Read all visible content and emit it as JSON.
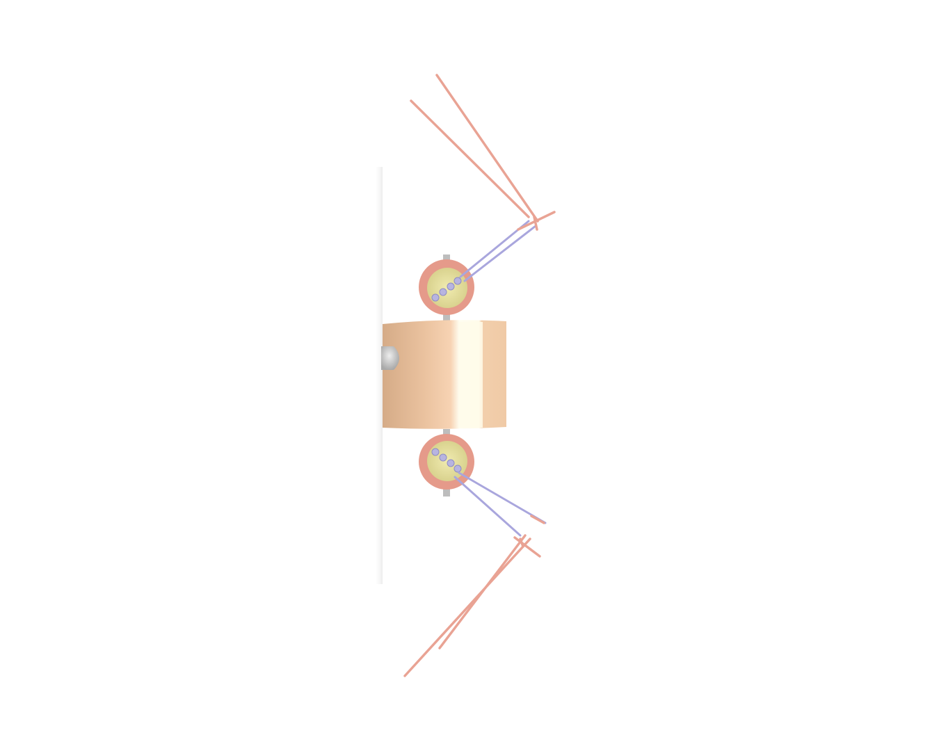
{
  "scene": {
    "colors": {
      "background": "#ffffff",
      "body_light": "#f2cfac",
      "body_dark": "#d9b08c",
      "highlight": "#fffbea",
      "knob": "#c9c9c9",
      "rim": "#e59a8a",
      "disc_inner": "#e8e3a0",
      "rod_pink": "#e9a394",
      "rod_lavender": "#a9a6dd",
      "bead": "#b7b4e0"
    }
  }
}
